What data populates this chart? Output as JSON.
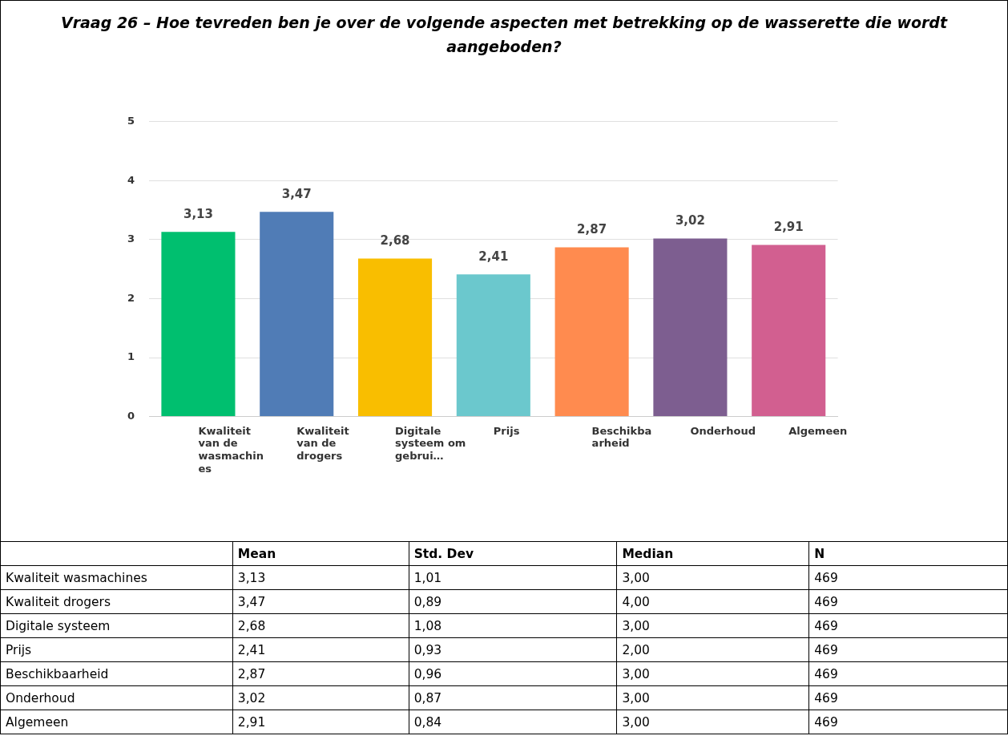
{
  "chart_data": [
    {
      "type": "bar",
      "title": "Vraag 26 – Hoe tevreden ben je over de volgende aspecten met betrekking op de wasserette die wordt aangeboden?",
      "categories": [
        "Kwaliteit van de wasmachines",
        "Kwaliteit van de drogers",
        "Digitale systeem om gebrui…",
        "Prijs",
        "Beschikbaarheid",
        "Onderhoud",
        "Algemeen"
      ],
      "values": [
        3.13,
        3.47,
        2.68,
        2.41,
        2.87,
        3.02,
        2.91
      ],
      "colors": [
        "#00bf6f",
        "#507cb6",
        "#f9be00",
        "#6bc8cd",
        "#ff8b4f",
        "#7d5e90",
        "#d25f90"
      ],
      "value_labels": [
        "3,13",
        "3,47",
        "2,68",
        "2,41",
        "2,87",
        "3,02",
        "2,91"
      ],
      "ylim": [
        0,
        5
      ],
      "yticks": [
        0,
        1,
        2,
        3,
        4,
        5
      ],
      "grid": "y",
      "legend": false
    },
    {
      "type": "heatmap",
      "categories": [
        "Mean",
        "Std. Dev",
        "Median",
        "N"
      ],
      "y_categories": [
        "Kwaliteit wasmachines",
        "Kwaliteit drogers",
        "Digitale systeem",
        "Prijs",
        "Beschikbaarheid",
        "Onderhoud",
        "Algemeen"
      ],
      "cells": [
        [
          3.13,
          1.01,
          3.0,
          469
        ],
        [
          3.47,
          0.89,
          4.0,
          469
        ],
        [
          2.68,
          1.08,
          3.0,
          469
        ],
        [
          2.41,
          0.93,
          2.0,
          469
        ],
        [
          2.87,
          0.96,
          3.0,
          469
        ],
        [
          3.02,
          0.87,
          3.0,
          469
        ],
        [
          2.91,
          0.84,
          3.0,
          469
        ]
      ],
      "cell_labels": [
        [
          "3,13",
          "1,01",
          "3,00",
          "469"
        ],
        [
          "3,47",
          "0,89",
          "4,00",
          "469"
        ],
        [
          "2,68",
          "1,08",
          "3,00",
          "469"
        ],
        [
          "2,41",
          "0,93",
          "2,00",
          "469"
        ],
        [
          "2,87",
          "0,96",
          "3,00",
          "469"
        ],
        [
          "3,02",
          "0,87",
          "3,00",
          "469"
        ],
        [
          "2,91",
          "0,84",
          "3,00",
          "469"
        ]
      ]
    }
  ]
}
